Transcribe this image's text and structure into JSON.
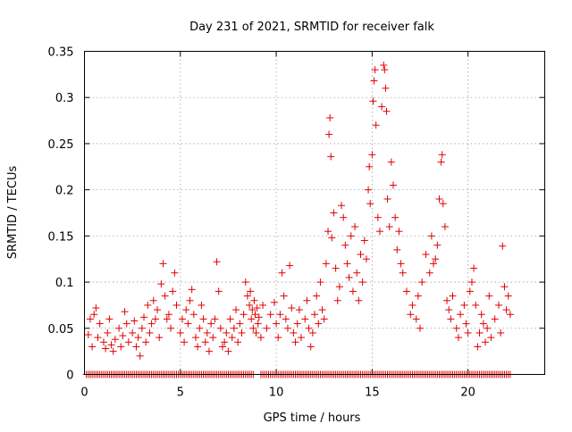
{
  "chart_data": {
    "type": "scatter",
    "title": "Day 231 of 2021, SRMTID for receiver falk",
    "xlabel": "GPS time / hours",
    "ylabel": "SRMTID / TECUs",
    "xlim": [
      0,
      24
    ],
    "ylim": [
      0,
      0.35
    ],
    "xticks": [
      0,
      5,
      10,
      15,
      20
    ],
    "yticks": [
      0,
      0.05,
      0.1,
      0.15,
      0.2,
      0.25,
      0.3,
      0.35
    ],
    "xtick_labels": [
      "0",
      "5",
      "10",
      "15",
      "20"
    ],
    "ytick_labels": [
      "0",
      "0.05",
      "0.1",
      "0.15",
      "0.2",
      "0.25",
      "0.3",
      "0.35"
    ],
    "grid": true,
    "marker": "+",
    "color": "#e00000",
    "series": [
      {
        "name": "SRMTID",
        "points": [
          [
            0.2,
            0.043
          ],
          [
            0.3,
            0.06
          ],
          [
            0.4,
            0.03
          ],
          [
            0.5,
            0.065
          ],
          [
            0.6,
            0.072
          ],
          [
            0.7,
            0.04
          ],
          [
            0.8,
            0.055
          ],
          [
            1.0,
            0.035
          ],
          [
            1.1,
            0.028
          ],
          [
            1.2,
            0.045
          ],
          [
            1.3,
            0.06
          ],
          [
            1.4,
            0.032
          ],
          [
            1.5,
            0.025
          ],
          [
            1.6,
            0.038
          ],
          [
            1.8,
            0.05
          ],
          [
            1.9,
            0.03
          ],
          [
            2.0,
            0.042
          ],
          [
            2.1,
            0.068
          ],
          [
            2.2,
            0.055
          ],
          [
            2.3,
            0.035
          ],
          [
            2.5,
            0.045
          ],
          [
            2.6,
            0.058
          ],
          [
            2.7,
            0.03
          ],
          [
            2.8,
            0.04
          ],
          [
            2.9,
            0.02
          ],
          [
            3.0,
            0.05
          ],
          [
            3.1,
            0.062
          ],
          [
            3.2,
            0.035
          ],
          [
            3.3,
            0.075
          ],
          [
            3.4,
            0.045
          ],
          [
            3.5,
            0.055
          ],
          [
            3.6,
            0.08
          ],
          [
            3.7,
            0.06
          ],
          [
            3.8,
            0.07
          ],
          [
            3.9,
            0.04
          ],
          [
            4.0,
            0.098
          ],
          [
            4.1,
            0.12
          ],
          [
            4.2,
            0.085
          ],
          [
            4.3,
            0.06
          ],
          [
            4.4,
            0.065
          ],
          [
            4.5,
            0.05
          ],
          [
            4.6,
            0.09
          ],
          [
            4.7,
            0.11
          ],
          [
            4.8,
            0.075
          ],
          [
            5.0,
            0.045
          ],
          [
            5.1,
            0.06
          ],
          [
            5.2,
            0.035
          ],
          [
            5.3,
            0.07
          ],
          [
            5.4,
            0.055
          ],
          [
            5.5,
            0.08
          ],
          [
            5.6,
            0.092
          ],
          [
            5.7,
            0.065
          ],
          [
            5.8,
            0.04
          ],
          [
            5.9,
            0.03
          ],
          [
            6.0,
            0.05
          ],
          [
            6.1,
            0.075
          ],
          [
            6.2,
            0.06
          ],
          [
            6.3,
            0.035
          ],
          [
            6.4,
            0.045
          ],
          [
            6.5,
            0.025
          ],
          [
            6.6,
            0.055
          ],
          [
            6.7,
            0.04
          ],
          [
            6.8,
            0.06
          ],
          [
            6.9,
            0.122
          ],
          [
            7.0,
            0.09
          ],
          [
            7.1,
            0.05
          ],
          [
            7.2,
            0.03
          ],
          [
            7.3,
            0.035
          ],
          [
            7.4,
            0.045
          ],
          [
            7.5,
            0.025
          ],
          [
            7.6,
            0.06
          ],
          [
            7.7,
            0.04
          ],
          [
            7.8,
            0.05
          ],
          [
            7.9,
            0.07
          ],
          [
            8.0,
            0.035
          ],
          [
            8.1,
            0.055
          ],
          [
            8.2,
            0.045
          ],
          [
            8.3,
            0.065
          ],
          [
            8.4,
            0.1
          ],
          [
            8.5,
            0.085
          ],
          [
            8.6,
            0.075
          ],
          [
            8.65,
            0.09
          ],
          [
            8.7,
            0.06
          ],
          [
            8.75,
            0.07
          ],
          [
            8.8,
            0.05
          ],
          [
            8.85,
            0.08
          ],
          [
            8.9,
            0.065
          ],
          [
            8.95,
            0.045
          ],
          [
            9.0,
            0.072
          ],
          [
            9.05,
            0.055
          ],
          [
            9.1,
            0.062
          ],
          [
            9.2,
            0.04
          ],
          [
            9.3,
            0.075
          ],
          [
            9.5,
            0.05
          ],
          [
            9.7,
            0.065
          ],
          [
            9.9,
            0.078
          ],
          [
            10.0,
            0.055
          ],
          [
            10.1,
            0.04
          ],
          [
            10.2,
            0.065
          ],
          [
            10.3,
            0.11
          ],
          [
            10.4,
            0.085
          ],
          [
            10.5,
            0.06
          ],
          [
            10.6,
            0.05
          ],
          [
            10.7,
            0.118
          ],
          [
            10.8,
            0.072
          ],
          [
            10.9,
            0.045
          ],
          [
            11.0,
            0.035
          ],
          [
            11.1,
            0.055
          ],
          [
            11.2,
            0.07
          ],
          [
            11.3,
            0.04
          ],
          [
            11.5,
            0.06
          ],
          [
            11.6,
            0.08
          ],
          [
            11.7,
            0.05
          ],
          [
            11.8,
            0.03
          ],
          [
            11.9,
            0.045
          ],
          [
            12.0,
            0.065
          ],
          [
            12.1,
            0.085
          ],
          [
            12.2,
            0.055
          ],
          [
            12.3,
            0.1
          ],
          [
            12.4,
            0.07
          ],
          [
            12.5,
            0.06
          ],
          [
            12.6,
            0.12
          ],
          [
            12.7,
            0.155
          ],
          [
            12.75,
            0.26
          ],
          [
            12.8,
            0.278
          ],
          [
            12.85,
            0.236
          ],
          [
            12.9,
            0.148
          ],
          [
            13.0,
            0.175
          ],
          [
            13.1,
            0.115
          ],
          [
            13.2,
            0.08
          ],
          [
            13.3,
            0.095
          ],
          [
            13.4,
            0.183
          ],
          [
            13.5,
            0.17
          ],
          [
            13.6,
            0.14
          ],
          [
            13.7,
            0.12
          ],
          [
            13.8,
            0.105
          ],
          [
            13.9,
            0.15
          ],
          [
            14.0,
            0.09
          ],
          [
            14.1,
            0.16
          ],
          [
            14.2,
            0.11
          ],
          [
            14.3,
            0.08
          ],
          [
            14.4,
            0.13
          ],
          [
            14.5,
            0.1
          ],
          [
            14.6,
            0.145
          ],
          [
            14.7,
            0.125
          ],
          [
            14.8,
            0.2
          ],
          [
            14.85,
            0.225
          ],
          [
            14.9,
            0.185
          ],
          [
            15.0,
            0.238
          ],
          [
            15.05,
            0.296
          ],
          [
            15.1,
            0.318
          ],
          [
            15.15,
            0.33
          ],
          [
            15.2,
            0.27
          ],
          [
            15.3,
            0.17
          ],
          [
            15.4,
            0.155
          ],
          [
            15.5,
            0.29
          ],
          [
            15.6,
            0.335
          ],
          [
            15.65,
            0.33
          ],
          [
            15.7,
            0.31
          ],
          [
            15.75,
            0.285
          ],
          [
            15.8,
            0.19
          ],
          [
            15.9,
            0.16
          ],
          [
            16.0,
            0.23
          ],
          [
            16.1,
            0.205
          ],
          [
            16.2,
            0.17
          ],
          [
            16.3,
            0.135
          ],
          [
            16.4,
            0.155
          ],
          [
            16.5,
            0.12
          ],
          [
            16.6,
            0.11
          ],
          [
            16.8,
            0.09
          ],
          [
            17.0,
            0.065
          ],
          [
            17.1,
            0.075
          ],
          [
            17.3,
            0.06
          ],
          [
            17.4,
            0.085
          ],
          [
            17.5,
            0.05
          ],
          [
            17.6,
            0.1
          ],
          [
            17.8,
            0.13
          ],
          [
            18.0,
            0.11
          ],
          [
            18.1,
            0.15
          ],
          [
            18.2,
            0.12
          ],
          [
            18.3,
            0.125
          ],
          [
            18.4,
            0.14
          ],
          [
            18.5,
            0.19
          ],
          [
            18.6,
            0.23
          ],
          [
            18.65,
            0.238
          ],
          [
            18.7,
            0.185
          ],
          [
            18.8,
            0.16
          ],
          [
            18.9,
            0.08
          ],
          [
            19.0,
            0.07
          ],
          [
            19.1,
            0.06
          ],
          [
            19.2,
            0.085
          ],
          [
            19.4,
            0.05
          ],
          [
            19.5,
            0.04
          ],
          [
            19.6,
            0.065
          ],
          [
            19.8,
            0.075
          ],
          [
            19.9,
            0.055
          ],
          [
            20.0,
            0.045
          ],
          [
            20.1,
            0.09
          ],
          [
            20.2,
            0.1
          ],
          [
            20.3,
            0.115
          ],
          [
            20.4,
            0.075
          ],
          [
            20.5,
            0.03
          ],
          [
            20.6,
            0.045
          ],
          [
            20.7,
            0.065
          ],
          [
            20.8,
            0.055
          ],
          [
            20.9,
            0.035
          ],
          [
            21.0,
            0.05
          ],
          [
            21.1,
            0.085
          ],
          [
            21.2,
            0.04
          ],
          [
            21.4,
            0.06
          ],
          [
            21.6,
            0.075
          ],
          [
            21.7,
            0.045
          ],
          [
            21.8,
            0.139
          ],
          [
            21.9,
            0.095
          ],
          [
            22.0,
            0.07
          ],
          [
            22.1,
            0.085
          ],
          [
            22.2,
            0.065
          ]
        ]
      },
      {
        "name": "zero-values",
        "x_start": 0.1,
        "x_end": 22.2,
        "x_step": 0.1,
        "gaps": [
          [
            8.8,
            9.1
          ]
        ],
        "y": 0
      }
    ]
  }
}
